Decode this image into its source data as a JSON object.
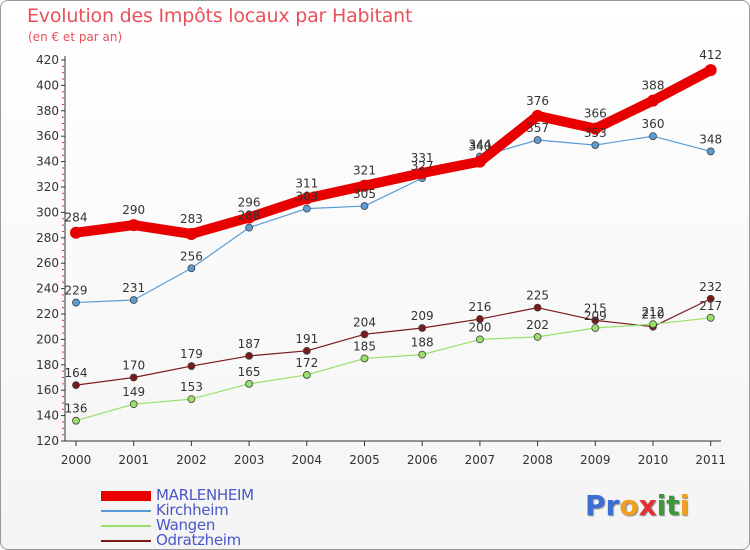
{
  "header": {
    "title": "Evolution des Impôts locaux par Habitant",
    "subtitle": "(en € et par an)"
  },
  "logo": {
    "letters": [
      "P",
      "r",
      "o",
      "x",
      "i",
      "t",
      "i"
    ],
    "colors": [
      "#3a6fd8",
      "#3a6fd8",
      "#f0a020",
      "#e03030",
      "#3a9a3a",
      "#3a9a3a",
      "#f0a020"
    ]
  },
  "chart_data": {
    "type": "line",
    "title": "Evolution des Impôts locaux par Habitant",
    "subtitle": "(en € et par an)",
    "x": [
      "2000",
      "2001",
      "2002",
      "2003",
      "2004",
      "2005",
      "2006",
      "2007",
      "2008",
      "2009",
      "2010",
      "2011"
    ],
    "ylim": [
      120,
      420
    ],
    "yticks": [
      120,
      140,
      160,
      180,
      200,
      220,
      240,
      260,
      280,
      300,
      320,
      340,
      360,
      380,
      400,
      420
    ],
    "grid": false,
    "legend_position": "bottom-left",
    "series": [
      {
        "name": "MARLENHEIM",
        "color": "#e80000",
        "values": [
          284,
          290,
          283,
          296,
          311,
          321,
          331,
          340,
          376,
          366,
          388,
          412
        ],
        "labels": [
          "284",
          "290",
          "283",
          "296",
          "311",
          "321",
          "331",
          "340",
          "376",
          "366",
          "388",
          "412"
        ]
      },
      {
        "name": "Kirchheim",
        "color": "#5b9bd5",
        "values": [
          229,
          231,
          256,
          288,
          303,
          305,
          327,
          344,
          357,
          353,
          360,
          348
        ],
        "labels": [
          "229",
          "231",
          "256",
          "288",
          "303",
          "305",
          "327",
          "344",
          "357",
          "353",
          "360",
          "348"
        ]
      },
      {
        "name": "Wangen",
        "color": "#99e06a",
        "values": [
          136,
          149,
          153,
          165,
          172,
          185,
          188,
          200,
          202,
          209,
          212,
          217
        ],
        "labels": [
          "136",
          "149",
          "153",
          "165",
          "172",
          "185",
          "188",
          "200",
          "202",
          "209",
          "212",
          "217"
        ]
      },
      {
        "name": "Odratzheim",
        "color": "#7a1a1a",
        "values": [
          164,
          170,
          179,
          187,
          191,
          204,
          209,
          216,
          225,
          215,
          210,
          232
        ],
        "labels": [
          "164",
          "170",
          "179",
          "187",
          "191",
          "204",
          "209",
          "216",
          "225",
          "215",
          "210",
          "232"
        ]
      }
    ]
  }
}
